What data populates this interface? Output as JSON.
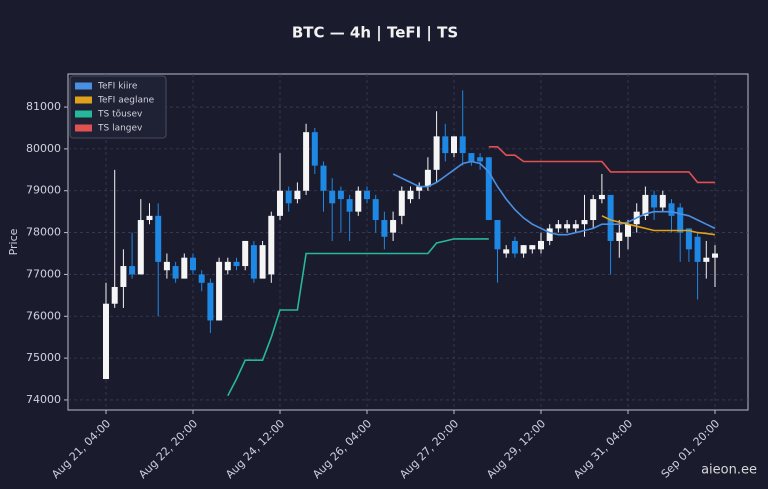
{
  "chart_data": {
    "type": "candlestick",
    "title": "BTC — 4h  |  TeFI  |  TS",
    "ylabel": "Price",
    "watermark": "aieon.ee",
    "categories": [
      "Aug 21, 04:00",
      null,
      null,
      null,
      null,
      null,
      null,
      null,
      null,
      null,
      "Aug 22, 20:00",
      null,
      null,
      null,
      null,
      null,
      null,
      null,
      null,
      null,
      "Aug 24, 12:00",
      null,
      null,
      null,
      null,
      null,
      null,
      null,
      null,
      null,
      "Aug 26, 04:00",
      null,
      null,
      null,
      null,
      null,
      null,
      null,
      null,
      null,
      "Aug 27, 20:00",
      null,
      null,
      null,
      null,
      null,
      null,
      null,
      null,
      null,
      "Aug 29, 12:00",
      null,
      null,
      null,
      null,
      null,
      null,
      null,
      null,
      null,
      "Aug 31, 04:00",
      null,
      null,
      null,
      null,
      null,
      null,
      null,
      null,
      null,
      "Sep 01, 20:00"
    ],
    "open": [
      74500,
      76300,
      76700,
      77200,
      77000,
      78300,
      78400,
      77100,
      77200,
      76900,
      77400,
      77000,
      76800,
      75900,
      77100,
      77300,
      77200,
      77700,
      76900,
      77000,
      78400,
      79000,
      78800,
      79000,
      80400,
      79600,
      79000,
      79000,
      78800,
      78500,
      79000,
      78800,
      78300,
      78000,
      78400,
      78800,
      79000,
      79100,
      79500,
      80300,
      79900,
      80300,
      79900,
      79800,
      79800,
      78300,
      77500,
      77800,
      77500,
      77600,
      77600,
      77800,
      78100,
      78100,
      78100,
      78200,
      78300,
      78800,
      78900,
      77800,
      77900,
      78200,
      78400,
      78900,
      78600,
      78700,
      78600,
      78100,
      77900,
      77300,
      77400
    ],
    "high": [
      76800,
      79500,
      77600,
      78000,
      78800,
      78700,
      78700,
      77500,
      77300,
      77500,
      77500,
      77100,
      76900,
      77400,
      77400,
      77400,
      77800,
      77800,
      77800,
      78500,
      79900,
      79100,
      79200,
      80600,
      80500,
      79700,
      79300,
      79100,
      78900,
      79100,
      79100,
      78900,
      78500,
      78500,
      79100,
      79100,
      79200,
      79800,
      80900,
      80600,
      80300,
      81400,
      79900,
      79900,
      79800,
      78300,
      77700,
      77900,
      77700,
      77700,
      78000,
      78200,
      78300,
      78300,
      78300,
      78900,
      78900,
      79400,
      78900,
      78300,
      78300,
      78700,
      79100,
      79000,
      79000,
      78800,
      78700,
      78100,
      78000,
      77800,
      77700
    ],
    "low": [
      74500,
      76200,
      76200,
      76900,
      77000,
      78200,
      76000,
      76900,
      76800,
      76900,
      77000,
      76600,
      75600,
      75900,
      77000,
      77100,
      77100,
      76800,
      76900,
      76800,
      78300,
      78500,
      78700,
      78900,
      79400,
      78500,
      77800,
      78000,
      77800,
      78400,
      78700,
      78000,
      77600,
      77800,
      78200,
      78700,
      78800,
      79000,
      79200,
      79700,
      79800,
      79600,
      79600,
      79500,
      78300,
      76800,
      77400,
      77400,
      77400,
      77500,
      77500,
      77700,
      78000,
      78000,
      78000,
      77900,
      78100,
      78700,
      77000,
      77400,
      77600,
      78000,
      78300,
      78300,
      78500,
      78000,
      77300,
      77300,
      76400,
      76900,
      76700
    ],
    "close": [
      76300,
      76700,
      77200,
      77000,
      78300,
      78400,
      77300,
      77300,
      76900,
      77400,
      77100,
      76800,
      75900,
      77300,
      77300,
      77200,
      77800,
      76900,
      77700,
      78400,
      79000,
      78700,
      79000,
      80400,
      79600,
      79000,
      78700,
      78800,
      78500,
      79000,
      78800,
      78300,
      77900,
      78300,
      79000,
      79000,
      79100,
      79500,
      80300,
      79900,
      80300,
      79900,
      79700,
      79700,
      78300,
      77600,
      77600,
      77500,
      77700,
      77700,
      77800,
      78100,
      78200,
      78200,
      78200,
      78300,
      78800,
      78900,
      77800,
      78000,
      78200,
      78500,
      78900,
      78600,
      78900,
      78400,
      78000,
      77600,
      77300,
      77400,
      77500
    ],
    "up_color": "#f5f5f5",
    "down_color": "#1e88e5",
    "series": [
      {
        "name": "TeFI kiire",
        "color": "#4a90e2",
        "values": [
          null,
          null,
          null,
          null,
          null,
          null,
          null,
          null,
          null,
          null,
          null,
          null,
          null,
          null,
          null,
          null,
          null,
          null,
          null,
          null,
          null,
          null,
          null,
          null,
          null,
          null,
          null,
          null,
          null,
          null,
          null,
          null,
          null,
          79400,
          79300,
          79200,
          79100,
          79100,
          79200,
          79350,
          79500,
          79650,
          79700,
          79650,
          79450,
          79100,
          78800,
          78550,
          78350,
          78200,
          78100,
          78000,
          77950,
          77950,
          78000,
          78050,
          78100,
          78200,
          78200,
          78200,
          78250,
          78350,
          78450,
          78500,
          78500,
          78500,
          78450,
          78400,
          78300,
          78200,
          78100
        ]
      },
      {
        "name": "TeFI aeglane",
        "color": "#e0a21a",
        "values": [
          null,
          null,
          null,
          null,
          null,
          null,
          null,
          null,
          null,
          null,
          null,
          null,
          null,
          null,
          null,
          null,
          null,
          null,
          null,
          null,
          null,
          null,
          null,
          null,
          null,
          null,
          null,
          null,
          null,
          null,
          null,
          null,
          null,
          null,
          null,
          null,
          null,
          null,
          null,
          null,
          null,
          null,
          null,
          null,
          null,
          null,
          null,
          null,
          null,
          null,
          null,
          null,
          null,
          null,
          null,
          null,
          null,
          78400,
          78300,
          78250,
          78200,
          78150,
          78100,
          78050,
          78050,
          78050,
          78050,
          78050,
          78000,
          77980,
          77950
        ]
      },
      {
        "name": "TS tõusev",
        "color": "#26b89a",
        "values": [
          null,
          null,
          null,
          null,
          null,
          null,
          null,
          null,
          null,
          null,
          null,
          null,
          null,
          null,
          74100,
          74500,
          74950,
          74950,
          74950,
          75500,
          76150,
          76150,
          76150,
          77500,
          77500,
          77500,
          77500,
          77500,
          77500,
          77500,
          77500,
          77500,
          77500,
          77500,
          77500,
          77500,
          77500,
          77500,
          77750,
          77800,
          77850,
          77850,
          77850,
          77850,
          77850,
          null,
          null,
          null,
          null,
          null,
          null,
          null,
          null,
          null,
          null,
          null,
          null,
          null,
          null,
          null,
          null,
          null,
          null,
          null,
          null,
          null,
          null,
          null,
          null,
          null,
          null
        ]
      },
      {
        "name": "TS langev",
        "color": "#e05252",
        "values": [
          null,
          null,
          null,
          null,
          null,
          null,
          null,
          null,
          null,
          null,
          null,
          null,
          null,
          null,
          null,
          null,
          null,
          null,
          null,
          null,
          null,
          null,
          null,
          null,
          null,
          null,
          null,
          null,
          null,
          null,
          null,
          null,
          null,
          null,
          null,
          null,
          null,
          null,
          null,
          null,
          null,
          null,
          null,
          null,
          80050,
          80050,
          79850,
          79850,
          79700,
          79700,
          79700,
          79700,
          79700,
          79700,
          79700,
          79700,
          79700,
          79700,
          79450,
          79450,
          79450,
          79450,
          79450,
          79450,
          79450,
          79450,
          79450,
          79450,
          79200,
          79200,
          79200
        ]
      }
    ],
    "ylim": [
      73760,
      81790
    ],
    "yticks": [
      74000,
      75000,
      76000,
      77000,
      78000,
      79000,
      80000,
      81000
    ],
    "grid": true
  }
}
